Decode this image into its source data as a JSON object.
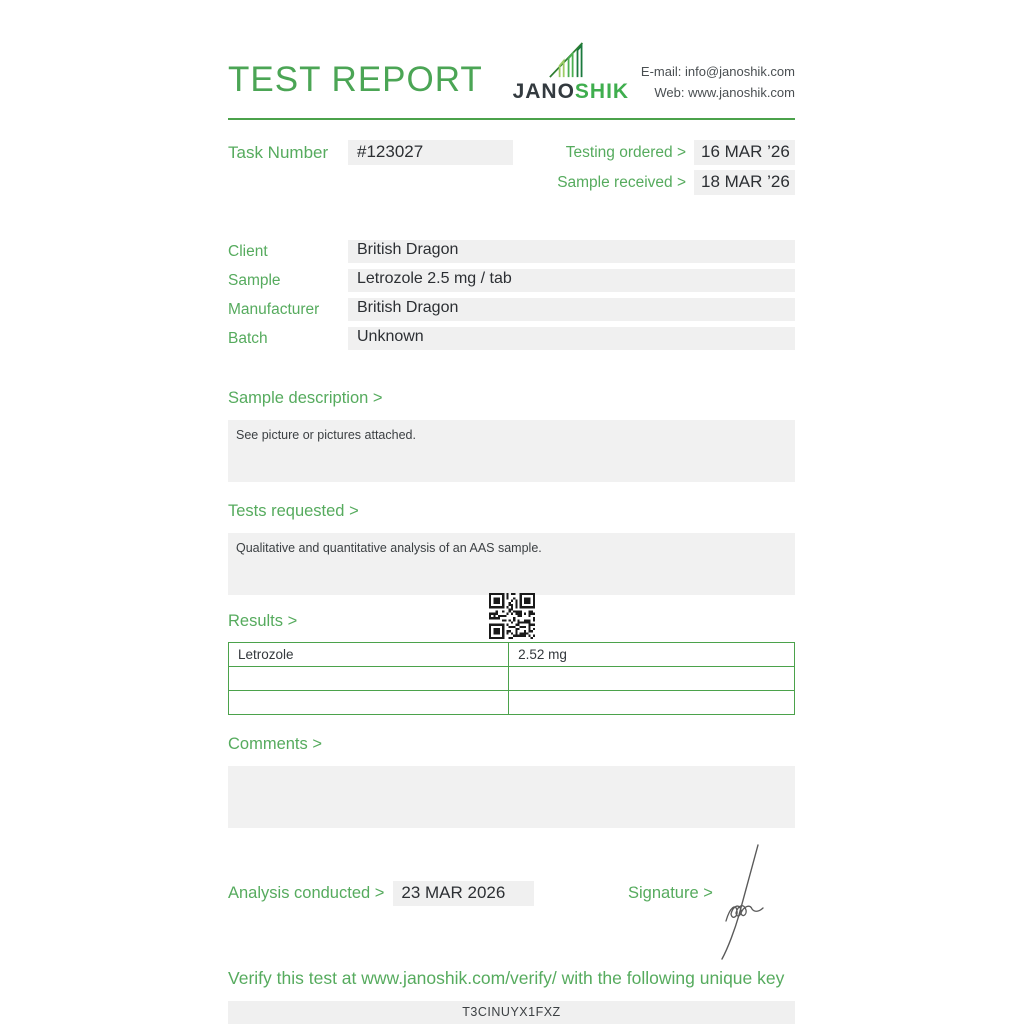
{
  "colors": {
    "brand_green": "#4ba24b",
    "label_green": "#56ab5e",
    "logo_dark": "#333a3f",
    "box_gray": "#f0f0f0",
    "text_dark": "#2c2f33"
  },
  "header": {
    "title": "TEST REPORT",
    "logo": {
      "part1": "JANO",
      "part2": "SHIK"
    },
    "contact": {
      "email": "E-mail: info@janoshik.com",
      "web": "Web: www.janoshik.com"
    }
  },
  "task": {
    "label": "Task Number",
    "number": "#123027",
    "testing_ordered_label": "Testing ordered  >",
    "testing_ordered": "16 MAR ’26",
    "sample_received_label": "Sample received >",
    "sample_received": "18 MAR ’26"
  },
  "info": {
    "rows": [
      {
        "label": "Client",
        "value": "British Dragon"
      },
      {
        "label": "Sample",
        "value": "Letrozole 2.5 mg / tab"
      },
      {
        "label": "Manufacturer",
        "value": "British Dragon"
      },
      {
        "label": "Batch",
        "value": "Unknown"
      }
    ]
  },
  "sample_description": {
    "heading": "Sample description >",
    "text": "See picture or pictures attached."
  },
  "tests_requested": {
    "heading": "Tests requested >",
    "text": "Qualitative and quantitative analysis of an AAS sample."
  },
  "results": {
    "heading": "Results >",
    "table": {
      "rows": [
        {
          "c1": "Letrozole",
          "c2": "2.52 mg"
        },
        {
          "c1": "",
          "c2": ""
        },
        {
          "c1": "",
          "c2": ""
        }
      ]
    }
  },
  "comments": {
    "heading": "Comments >",
    "text": ""
  },
  "footer": {
    "analysis_label": "Analysis conducted >",
    "analysis_date": "23 MAR 2026",
    "signature_label": "Signature >",
    "verify_text": "Verify this test at www.janoshik.com/verify/ with the following unique key",
    "unique_key": "T3CINUYX1FXZ"
  }
}
